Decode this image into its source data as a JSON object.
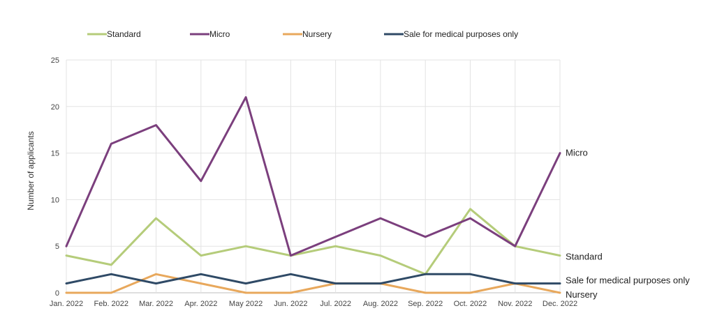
{
  "chart_data": {
    "type": "line",
    "title": "",
    "xlabel": "",
    "ylabel": "Number of applicants",
    "ylim": [
      0,
      25
    ],
    "yticks": [
      0,
      5,
      10,
      15,
      20,
      25
    ],
    "grid": true,
    "legend_position": "top",
    "categories": [
      "Jan. 2022",
      "Feb. 2022",
      "Mar. 2022",
      "Apr. 2022",
      "May 2022",
      "Jun. 2022",
      "Jul. 2022",
      "Aug. 2022",
      "Sep. 2022",
      "Oct. 2022",
      "Nov. 2022",
      "Dec. 2022"
    ],
    "series": [
      {
        "name": "Standard",
        "color": "#b5cc7a",
        "values": [
          4,
          3,
          8,
          4,
          5,
          4,
          5,
          4,
          2,
          9,
          5,
          4
        ]
      },
      {
        "name": "Micro",
        "color": "#7b3f7d",
        "values": [
          5,
          16,
          18,
          12,
          21,
          4,
          6,
          8,
          6,
          8,
          5,
          15
        ]
      },
      {
        "name": "Nursery",
        "color": "#e8a85c",
        "values": [
          0,
          0,
          2,
          1,
          0,
          0,
          1,
          1,
          0,
          0,
          1,
          0
        ]
      },
      {
        "name": "Sale for medical purposes only",
        "color": "#2f4a66",
        "values": [
          1,
          2,
          1,
          2,
          1,
          2,
          1,
          1,
          2,
          2,
          1,
          1
        ]
      }
    ]
  }
}
